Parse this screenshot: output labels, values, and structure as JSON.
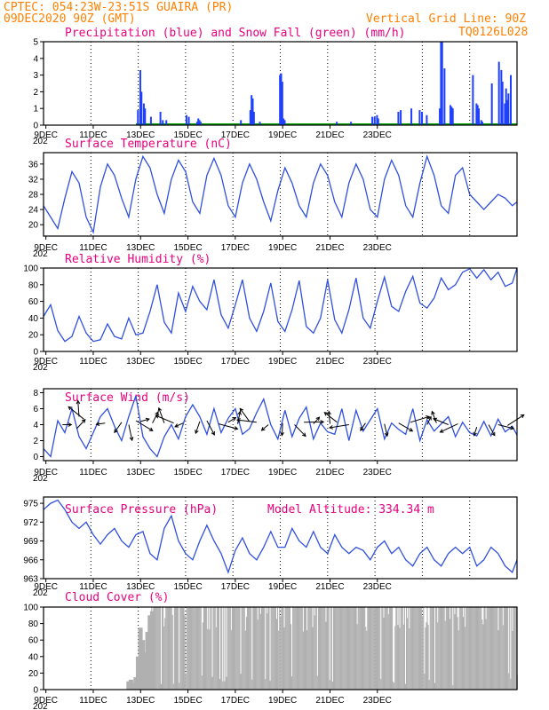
{
  "header": {
    "line1": "CPTEC:   054:23W-23:51S   GUAIRA (PR)",
    "line2": "09DEC2020 90Z (GMT)",
    "grid_note": "Vertical Grid Line: 90Z",
    "code": "TQ0126L028",
    "color": "#ff8000"
  },
  "x_labels": [
    "9DEC",
    "11DEC",
    "13DEC",
    "15DEC",
    "17DEC",
    "19DEC",
    "21DEC",
    "23DEC"
  ],
  "x_labels_small": [
    "9DEC",
    "11DEC",
    "13DEC",
    "15DEC",
    "17DEC",
    "19DEC",
    "21DEC",
    "23DEC"
  ],
  "year_stub": "202",
  "chart_data": [
    {
      "type": "bar",
      "title": "Precipitation (blue) and Snow Fall (green) (mm/h)",
      "ylim": [
        0,
        5
      ],
      "yticks": [
        0,
        1,
        2,
        3,
        4,
        5
      ],
      "series_color": "#2040ff",
      "snow_color": "#00a000",
      "bars": [
        [
          3.95,
          0.9
        ],
        [
          4.05,
          3.3
        ],
        [
          4.1,
          2.0
        ],
        [
          4.2,
          1.3
        ],
        [
          4.25,
          1.0
        ],
        [
          4.5,
          0.5
        ],
        [
          4.9,
          0.8
        ],
        [
          5.0,
          0.3
        ],
        [
          5.15,
          0.3
        ],
        [
          6.0,
          0.6
        ],
        [
          6.1,
          0.5
        ],
        [
          6.45,
          0.2
        ],
        [
          6.5,
          0.4
        ],
        [
          6.55,
          0.3
        ],
        [
          6.6,
          0.2
        ],
        [
          8.3,
          0.3
        ],
        [
          8.7,
          0.9
        ],
        [
          8.75,
          1.8
        ],
        [
          8.8,
          1.6
        ],
        [
          8.85,
          0.8
        ],
        [
          9.1,
          0.2
        ],
        [
          9.95,
          3.0
        ],
        [
          10.0,
          3.1
        ],
        [
          10.05,
          2.6
        ],
        [
          10.1,
          0.4
        ],
        [
          10.15,
          0.3
        ],
        [
          12.35,
          0.2
        ],
        [
          12.95,
          0.2
        ],
        [
          13.85,
          0.5
        ],
        [
          13.95,
          0.5
        ],
        [
          14.05,
          0.6
        ],
        [
          14.1,
          0.4
        ],
        [
          14.95,
          0.8
        ],
        [
          15.05,
          0.9
        ],
        [
          15.5,
          1.0
        ],
        [
          15.85,
          0.9
        ],
        [
          15.95,
          0.8
        ],
        [
          16.15,
          0.6
        ],
        [
          16.7,
          1.0
        ],
        [
          16.75,
          5.0
        ],
        [
          16.8,
          5.0
        ],
        [
          16.9,
          3.4
        ],
        [
          17.15,
          1.2
        ],
        [
          17.2,
          1.1
        ],
        [
          17.25,
          1.0
        ],
        [
          18.1,
          3.0
        ],
        [
          18.25,
          1.3
        ],
        [
          18.3,
          1.2
        ],
        [
          18.35,
          1.0
        ],
        [
          18.45,
          0.3
        ],
        [
          18.5,
          0.2
        ],
        [
          18.9,
          2.5
        ],
        [
          19.2,
          3.8
        ],
        [
          19.3,
          3.3
        ],
        [
          19.35,
          2.6
        ],
        [
          19.45,
          1.3
        ],
        [
          19.5,
          2.2
        ],
        [
          19.55,
          1.5
        ],
        [
          19.6,
          1.9
        ],
        [
          19.7,
          3.0
        ]
      ],
      "snow": 0
    },
    {
      "type": "line",
      "title": "Surface Temperature (nC)",
      "ylim": [
        17,
        39
      ],
      "yticks": [
        20,
        24,
        28,
        32,
        36
      ],
      "x": [
        0,
        0.3,
        0.6,
        0.9,
        1.2,
        1.5,
        1.8,
        2.1,
        2.4,
        2.7,
        3.0,
        3.3,
        3.6,
        3.9,
        4.2,
        4.5,
        4.8,
        5.1,
        5.4,
        5.7,
        6.0,
        6.3,
        6.6,
        6.9,
        7.2,
        7.5,
        7.8,
        8.1,
        8.4,
        8.7,
        9.0,
        9.3,
        9.6,
        9.9,
        10.2,
        10.5,
        10.8,
        11.1,
        11.4,
        11.7,
        12.0,
        12.3,
        12.6,
        12.9,
        13.2,
        13.5,
        13.8,
        14.1,
        14.4,
        14.7,
        15.0,
        15.3,
        15.6,
        15.9,
        16.2,
        16.5,
        16.8,
        17.1,
        17.4,
        17.7,
        18.0,
        18.3,
        18.6,
        18.9,
        19.2,
        19.5,
        19.8,
        20.0
      ],
      "y": [
        25,
        22,
        19,
        27,
        34,
        31,
        22,
        18,
        30,
        36,
        33,
        27,
        22,
        32,
        38,
        35,
        28,
        23,
        32,
        37,
        34,
        26,
        23,
        33,
        37.5,
        33,
        25,
        22,
        31,
        36,
        32,
        26,
        21,
        29,
        35,
        31,
        25,
        22,
        31,
        36,
        33,
        26,
        22,
        31,
        36,
        32,
        24,
        22,
        32,
        37,
        33,
        25,
        22,
        31,
        38,
        33,
        25,
        23,
        33,
        35,
        28,
        26,
        24,
        26,
        28,
        27,
        25,
        26
      ]
    },
    {
      "type": "line",
      "title": "Relative Humidity (%)",
      "ylim": [
        0,
        100
      ],
      "yticks": [
        0,
        20,
        40,
        60,
        80,
        100
      ],
      "x": [
        0,
        0.3,
        0.6,
        0.9,
        1.2,
        1.5,
        1.8,
        2.1,
        2.4,
        2.7,
        3.0,
        3.3,
        3.6,
        3.9,
        4.2,
        4.5,
        4.8,
        5.1,
        5.4,
        5.7,
        6.0,
        6.3,
        6.6,
        6.9,
        7.2,
        7.5,
        7.8,
        8.1,
        8.4,
        8.7,
        9.0,
        9.3,
        9.6,
        9.9,
        10.2,
        10.5,
        10.8,
        11.1,
        11.4,
        11.7,
        12.0,
        12.3,
        12.6,
        12.9,
        13.2,
        13.5,
        13.8,
        14.1,
        14.4,
        14.7,
        15.0,
        15.3,
        15.6,
        15.9,
        16.2,
        16.5,
        16.8,
        17.1,
        17.4,
        17.7,
        18.0,
        18.3,
        18.6,
        18.9,
        19.2,
        19.5,
        19.8,
        20.0
      ],
      "y": [
        42,
        56,
        25,
        12,
        18,
        42,
        22,
        12,
        14,
        33,
        18,
        15,
        40,
        20,
        22,
        48,
        80,
        35,
        22,
        70,
        48,
        78,
        60,
        50,
        86,
        44,
        28,
        56,
        86,
        40,
        24,
        48,
        82,
        36,
        24,
        50,
        85,
        30,
        22,
        40,
        86,
        38,
        22,
        50,
        88,
        40,
        28,
        60,
        89,
        54,
        48,
        72,
        90,
        58,
        52,
        64,
        88,
        74,
        80,
        95,
        99,
        88,
        98,
        86,
        95,
        78,
        82,
        100
      ]
    },
    {
      "type": "line",
      "title": "Surface Wind (m/s)",
      "ylim": [
        -0.5,
        8.5
      ],
      "yticks": [
        0,
        2,
        4,
        6,
        8
      ],
      "x": [
        0,
        0.3,
        0.6,
        0.9,
        1.2,
        1.5,
        1.8,
        2.1,
        2.4,
        2.7,
        3.0,
        3.3,
        3.6,
        3.9,
        4.2,
        4.5,
        4.8,
        5.1,
        5.4,
        5.7,
        6.0,
        6.3,
        6.6,
        6.9,
        7.2,
        7.5,
        7.8,
        8.1,
        8.4,
        8.7,
        9.0,
        9.3,
        9.6,
        9.9,
        10.2,
        10.5,
        10.8,
        11.1,
        11.4,
        11.7,
        12.0,
        12.3,
        12.6,
        12.9,
        13.2,
        13.5,
        13.8,
        14.1,
        14.4,
        14.7,
        15.0,
        15.3,
        15.6,
        15.9,
        16.2,
        16.5,
        16.8,
        17.1,
        17.4,
        17.7,
        18.0,
        18.3,
        18.6,
        18.9,
        19.2,
        19.5,
        19.8,
        20.0
      ],
      "y": [
        1,
        0,
        4.5,
        3,
        6,
        2.5,
        1,
        3,
        5,
        6,
        3.8,
        2,
        5,
        7.6,
        2.5,
        1,
        0,
        2.5,
        4,
        2.2,
        5,
        6.5,
        5,
        2.8,
        6,
        3,
        4.8,
        6,
        2.8,
        3.5,
        5.5,
        7.2,
        4,
        2.2,
        5.8,
        2.5,
        4.8,
        6.2,
        2.2,
        4.2,
        3.1,
        2.8,
        6,
        2,
        5.8,
        3.2,
        4.6,
        6,
        2.2,
        4.2,
        3.4,
        2.8,
        6,
        2,
        4.6,
        3.2,
        4.1,
        5,
        2.5,
        4.3,
        3,
        2.6,
        4.4,
        2.6,
        4.7,
        3.1,
        3.8,
        2.7
      ],
      "vectors": [
        [
          0.8,
          4
        ],
        [
          1.4,
          3.5
        ],
        [
          1.5,
          5
        ],
        [
          1.7,
          4.7
        ],
        [
          2.6,
          4.2
        ],
        [
          3.3,
          4.3
        ],
        [
          3.6,
          4
        ],
        [
          3.9,
          4.5
        ],
        [
          4.1,
          4.4
        ],
        [
          4.6,
          4.2
        ],
        [
          5.1,
          4.2
        ],
        [
          5.5,
          4.2
        ],
        [
          5.9,
          4.2
        ],
        [
          6.6,
          4.4
        ],
        [
          6.9,
          4.5
        ],
        [
          7.4,
          4.1
        ],
        [
          7.8,
          4.3
        ],
        [
          8.2,
          4.1
        ],
        [
          8.7,
          4.4
        ],
        [
          9.0,
          4.3
        ],
        [
          9.5,
          4.0
        ],
        [
          10.1,
          4.2
        ],
        [
          10.6,
          4.0
        ],
        [
          11.0,
          4.3
        ],
        [
          11.4,
          4.1
        ],
        [
          12.1,
          4.1
        ],
        [
          12.4,
          4.3
        ],
        [
          12.9,
          4.0
        ],
        [
          13.6,
          4.2
        ],
        [
          14.4,
          4.1
        ],
        [
          15.0,
          4.2
        ],
        [
          15.5,
          4.3
        ],
        [
          16.2,
          4.0
        ],
        [
          16.6,
          4.2
        ],
        [
          17.1,
          4.0
        ],
        [
          17.5,
          4.1
        ],
        [
          18.3,
          3.7
        ],
        [
          18.8,
          4.0
        ],
        [
          19.2,
          4.0
        ],
        [
          19.6,
          3.9
        ]
      ]
    },
    {
      "type": "line",
      "title": "Surface Pressure (hPa)",
      "subtitle": "Model Altitude: 334.34 m",
      "ylim": [
        963,
        976
      ],
      "yticks": [
        963,
        966,
        969,
        972,
        975
      ],
      "x": [
        0,
        0.3,
        0.6,
        0.9,
        1.2,
        1.5,
        1.8,
        2.1,
        2.4,
        2.7,
        3.0,
        3.3,
        3.6,
        3.9,
        4.2,
        4.5,
        4.8,
        5.1,
        5.4,
        5.7,
        6.0,
        6.3,
        6.6,
        6.9,
        7.2,
        7.5,
        7.8,
        8.1,
        8.4,
        8.7,
        9.0,
        9.3,
        9.6,
        9.9,
        10.2,
        10.5,
        10.8,
        11.1,
        11.4,
        11.7,
        12.0,
        12.3,
        12.6,
        12.9,
        13.2,
        13.5,
        13.8,
        14.1,
        14.4,
        14.7,
        15.0,
        15.3,
        15.6,
        15.9,
        16.2,
        16.5,
        16.8,
        17.1,
        17.4,
        17.7,
        18.0,
        18.3,
        18.6,
        18.9,
        19.2,
        19.5,
        19.8,
        20.0
      ],
      "y": [
        974,
        975,
        975.5,
        974,
        972,
        971,
        972,
        970,
        968.5,
        970,
        971,
        969,
        968,
        970,
        970.5,
        967,
        966,
        971,
        973,
        969,
        967,
        966,
        969,
        971.5,
        969,
        967,
        964,
        967.5,
        969.5,
        967,
        966,
        968,
        970.5,
        968,
        968,
        971,
        969,
        968,
        970.5,
        968,
        967,
        970,
        968,
        967,
        968,
        967.5,
        966,
        968,
        969,
        967,
        968,
        966,
        965,
        967,
        968,
        966,
        965,
        967,
        968,
        967,
        968,
        965,
        966,
        968,
        967,
        965,
        964,
        966
      ]
    },
    {
      "type": "bar",
      "title": "Cloud Cover (%)",
      "ylim": [
        0,
        100
      ],
      "yticks": [
        0,
        20,
        40,
        60,
        80,
        100
      ],
      "series_color": "#b0b0b0",
      "start_x": 3.5,
      "early": [
        [
          3.5,
          10
        ],
        [
          3.6,
          12
        ],
        [
          3.7,
          8
        ],
        [
          3.8,
          15
        ],
        [
          3.9,
          40
        ],
        [
          4.0,
          75
        ],
        [
          4.1,
          60
        ],
        [
          4.2,
          45
        ],
        [
          4.3,
          70
        ],
        [
          4.4,
          90
        ],
        [
          4.5,
          95
        ]
      ]
    }
  ]
}
